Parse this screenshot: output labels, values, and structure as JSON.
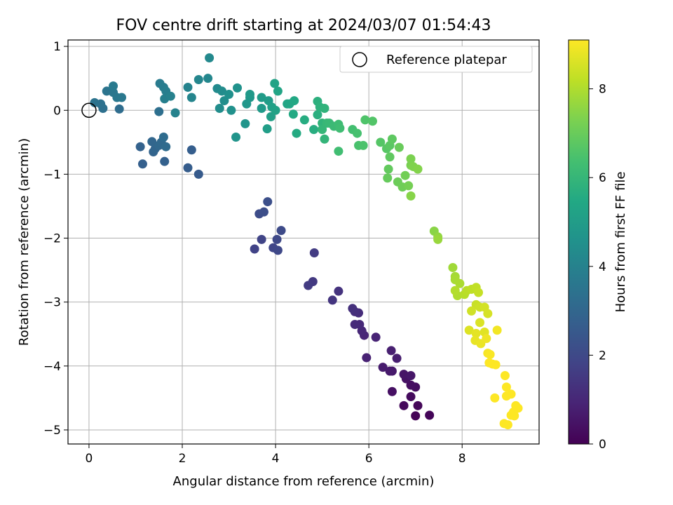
{
  "chart_data": {
    "type": "scatter",
    "title": "FOV centre drift starting at 2024/03/07 01:54:43",
    "xlabel": "Angular distance from reference (arcmin)",
    "ylabel": "Rotation from reference (arcmin)",
    "xlim": [
      -0.45,
      9.65
    ],
    "ylim": [
      -5.22,
      1.1
    ],
    "x_ticks": [
      0,
      2,
      4,
      6,
      8
    ],
    "y_ticks": [
      1,
      0,
      -1,
      -2,
      -3,
      -4,
      -5
    ],
    "grid": true,
    "legend": {
      "position": "top-right",
      "entries": [
        "Reference platepar"
      ]
    },
    "reference_point": {
      "x": 0,
      "y": 0
    },
    "colorbar": {
      "label": "Hours from first FF file",
      "range": [
        0,
        9.1
      ],
      "ticks": [
        0,
        2,
        4,
        6,
        8
      ],
      "colormap": "viridis"
    },
    "points": [
      [
        7.0,
        -4.78,
        0.05
      ],
      [
        7.3,
        -4.77,
        0.1
      ],
      [
        7.05,
        -4.62,
        0.15
      ],
      [
        6.75,
        -4.62,
        0.2
      ],
      [
        6.9,
        -4.48,
        0.25
      ],
      [
        7.0,
        -4.33,
        0.3
      ],
      [
        6.9,
        -4.3,
        0.35
      ],
      [
        6.5,
        -4.4,
        0.4
      ],
      [
        6.8,
        -4.2,
        0.45
      ],
      [
        6.75,
        -4.13,
        0.5
      ],
      [
        6.9,
        -4.15,
        0.55
      ],
      [
        6.5,
        -4.08,
        0.6
      ],
      [
        6.45,
        -4.08,
        0.65
      ],
      [
        6.3,
        -4.02,
        0.7
      ],
      [
        6.6,
        -3.88,
        0.75
      ],
      [
        6.48,
        -3.76,
        0.8
      ],
      [
        5.95,
        -3.87,
        0.85
      ],
      [
        6.15,
        -3.55,
        0.9
      ],
      [
        5.9,
        -3.52,
        0.95
      ],
      [
        5.85,
        -3.45,
        1.0
      ],
      [
        5.8,
        -3.35,
        1.05
      ],
      [
        5.7,
        -3.35,
        1.1
      ],
      [
        5.78,
        -3.17,
        1.15
      ],
      [
        5.7,
        -3.15,
        1.2
      ],
      [
        5.65,
        -3.1,
        1.25
      ],
      [
        5.35,
        -2.83,
        1.35
      ],
      [
        5.22,
        -2.97,
        1.4
      ],
      [
        4.8,
        -2.68,
        1.5
      ],
      [
        4.7,
        -2.74,
        1.55
      ],
      [
        4.83,
        -2.23,
        1.6
      ],
      [
        3.55,
        -2.17,
        1.8
      ],
      [
        3.7,
        -2.02,
        1.85
      ],
      [
        3.95,
        -2.15,
        1.9
      ],
      [
        4.05,
        -2.19,
        1.95
      ],
      [
        4.03,
        -2.02,
        2.0
      ],
      [
        4.12,
        -1.88,
        2.05
      ],
      [
        3.65,
        -1.62,
        2.1
      ],
      [
        3.75,
        -1.59,
        2.15
      ],
      [
        3.83,
        -1.43,
        2.2
      ],
      [
        2.35,
        -1.0,
        2.6
      ],
      [
        2.12,
        -0.9,
        2.65
      ],
      [
        2.2,
        -0.62,
        2.7
      ],
      [
        1.15,
        -0.84,
        2.75
      ],
      [
        1.62,
        -0.8,
        2.8
      ],
      [
        1.1,
        -0.57,
        2.85
      ],
      [
        1.38,
        -0.65,
        2.9
      ],
      [
        1.42,
        -0.6,
        2.95
      ],
      [
        1.35,
        -0.49,
        3.0
      ],
      [
        1.5,
        -0.55,
        3.05
      ],
      [
        1.55,
        -0.5,
        3.1
      ],
      [
        1.65,
        -0.57,
        3.15
      ],
      [
        1.6,
        -0.42,
        3.2
      ],
      [
        0.65,
        0.02,
        3.25
      ],
      [
        1.5,
        -0.02,
        3.3
      ],
      [
        0.3,
        0.03,
        3.35
      ],
      [
        0.25,
        0.1,
        3.4
      ],
      [
        0.12,
        0.12,
        3.45
      ],
      [
        0.38,
        0.3,
        3.5
      ],
      [
        0.52,
        0.28,
        3.55
      ],
      [
        0.6,
        0.2,
        3.6
      ],
      [
        0.7,
        0.2,
        3.65
      ],
      [
        0.52,
        0.38,
        3.7
      ],
      [
        1.52,
        0.42,
        3.75
      ],
      [
        1.6,
        0.36,
        3.8
      ],
      [
        1.65,
        0.3,
        3.85
      ],
      [
        1.62,
        0.18,
        3.9
      ],
      [
        1.75,
        0.22,
        3.95
      ],
      [
        1.85,
        -0.04,
        4.0
      ],
      [
        2.12,
        0.36,
        4.05
      ],
      [
        2.2,
        0.2,
        4.1
      ],
      [
        2.35,
        0.48,
        4.15
      ],
      [
        2.55,
        0.5,
        4.2
      ],
      [
        2.58,
        0.82,
        4.25
      ],
      [
        2.75,
        0.34,
        4.3
      ],
      [
        2.85,
        0.3,
        4.35
      ],
      [
        2.8,
        0.03,
        4.4
      ],
      [
        2.9,
        0.15,
        4.45
      ],
      [
        3.0,
        0.25,
        4.5
      ],
      [
        3.05,
        0.0,
        4.55
      ],
      [
        3.18,
        0.35,
        4.6
      ],
      [
        3.15,
        -0.42,
        4.65
      ],
      [
        3.35,
        -0.21,
        4.7
      ],
      [
        3.38,
        0.1,
        4.75
      ],
      [
        3.45,
        0.2,
        4.8
      ],
      [
        3.45,
        0.25,
        4.85
      ],
      [
        3.7,
        0.03,
        4.9
      ],
      [
        3.7,
        0.2,
        4.95
      ],
      [
        3.85,
        0.15,
        5.0
      ],
      [
        3.82,
        -0.29,
        5.05
      ],
      [
        3.9,
        -0.1,
        5.1
      ],
      [
        3.92,
        0.05,
        5.15
      ],
      [
        4.0,
        0.0,
        5.2
      ],
      [
        3.98,
        0.42,
        5.25
      ],
      [
        4.05,
        0.3,
        5.3
      ],
      [
        4.25,
        0.1,
        5.35
      ],
      [
        4.3,
        0.1,
        5.4
      ],
      [
        4.4,
        0.15,
        5.45
      ],
      [
        4.38,
        -0.06,
        5.5
      ],
      [
        4.45,
        -0.36,
        5.55
      ],
      [
        4.62,
        -0.15,
        5.6
      ],
      [
        4.82,
        -0.3,
        5.65
      ],
      [
        4.9,
        -0.07,
        5.7
      ],
      [
        4.9,
        0.14,
        5.75
      ],
      [
        4.95,
        0.05,
        5.8
      ],
      [
        5.05,
        0.03,
        5.85
      ],
      [
        5.0,
        -0.2,
        5.9
      ],
      [
        5.05,
        -0.45,
        5.95
      ],
      [
        5.0,
        -0.3,
        6.0
      ],
      [
        5.1,
        -0.2,
        6.05
      ],
      [
        5.15,
        -0.2,
        6.1
      ],
      [
        5.25,
        -0.25,
        6.15
      ],
      [
        5.35,
        -0.22,
        6.2
      ],
      [
        5.38,
        -0.28,
        6.25
      ],
      [
        5.35,
        -0.64,
        6.3
      ],
      [
        5.65,
        -0.3,
        6.35
      ],
      [
        5.75,
        -0.36,
        6.4
      ],
      [
        5.78,
        -0.55,
        6.45
      ],
      [
        5.88,
        -0.55,
        6.5
      ],
      [
        5.92,
        -0.15,
        6.55
      ],
      [
        6.08,
        -0.17,
        6.6
      ],
      [
        6.25,
        -0.5,
        6.65
      ],
      [
        6.38,
        -0.6,
        6.7
      ],
      [
        6.45,
        -0.55,
        6.75
      ],
      [
        6.5,
        -0.45,
        6.8
      ],
      [
        6.45,
        -0.73,
        6.85
      ],
      [
        6.42,
        -0.92,
        6.9
      ],
      [
        6.4,
        -1.06,
        6.95
      ],
      [
        6.65,
        -0.58,
        7.0
      ],
      [
        6.62,
        -1.12,
        7.05
      ],
      [
        6.72,
        -1.2,
        7.1
      ],
      [
        6.78,
        -1.02,
        7.15
      ],
      [
        6.85,
        -1.18,
        7.2
      ],
      [
        6.9,
        -0.86,
        7.25
      ],
      [
        6.9,
        -0.76,
        7.3
      ],
      [
        6.95,
        -0.88,
        7.35
      ],
      [
        7.05,
        -0.92,
        7.4
      ],
      [
        6.9,
        -1.34,
        7.45
      ],
      [
        7.4,
        -1.89,
        7.5
      ],
      [
        7.48,
        -1.98,
        7.6
      ],
      [
        7.48,
        -2.02,
        7.7
      ],
      [
        7.8,
        -2.46,
        7.8
      ],
      [
        7.85,
        -2.6,
        7.85
      ],
      [
        7.85,
        -2.65,
        7.9
      ],
      [
        7.95,
        -2.71,
        7.95
      ],
      [
        7.9,
        -2.9,
        8.0
      ],
      [
        7.85,
        -2.82,
        8.05
      ],
      [
        8.05,
        -2.88,
        8.1
      ],
      [
        8.1,
        -2.82,
        8.15
      ],
      [
        8.2,
        -2.8,
        8.2
      ],
      [
        8.3,
        -2.77,
        8.25
      ],
      [
        8.35,
        -2.85,
        8.3
      ],
      [
        8.3,
        -3.04,
        8.35
      ],
      [
        8.38,
        -3.08,
        8.4
      ],
      [
        8.2,
        -3.14,
        8.45
      ],
      [
        8.48,
        -3.08,
        8.5
      ],
      [
        8.55,
        -3.18,
        8.55
      ],
      [
        8.38,
        -3.32,
        8.6
      ],
      [
        8.15,
        -3.44,
        8.65
      ],
      [
        8.48,
        -3.47,
        8.7
      ],
      [
        8.3,
        -3.49,
        8.75
      ],
      [
        8.28,
        -3.6,
        8.8
      ],
      [
        8.4,
        -3.65,
        8.85
      ],
      [
        8.52,
        -3.57,
        8.9
      ],
      [
        8.75,
        -3.44,
        8.95
      ],
      [
        8.55,
        -3.8,
        9.0
      ],
      [
        8.6,
        -3.82,
        9.05
      ],
      [
        8.58,
        -3.95,
        9.1
      ],
      [
        8.65,
        -3.97,
        9.1
      ],
      [
        8.72,
        -3.98,
        9.1
      ],
      [
        8.7,
        -4.5,
        9.1
      ],
      [
        8.92,
        -4.15,
        9.1
      ],
      [
        8.95,
        -4.33,
        9.1
      ],
      [
        9.05,
        -4.44,
        9.1
      ],
      [
        8.95,
        -4.47,
        9.1
      ],
      [
        9.15,
        -4.62,
        9.1
      ],
      [
        9.2,
        -4.66,
        9.1
      ],
      [
        9.1,
        -4.72,
        9.1
      ],
      [
        9.05,
        -4.77,
        9.1
      ],
      [
        9.12,
        -4.78,
        9.1
      ],
      [
        8.9,
        -4.9,
        9.1
      ],
      [
        8.98,
        -4.92,
        9.1
      ]
    ]
  }
}
